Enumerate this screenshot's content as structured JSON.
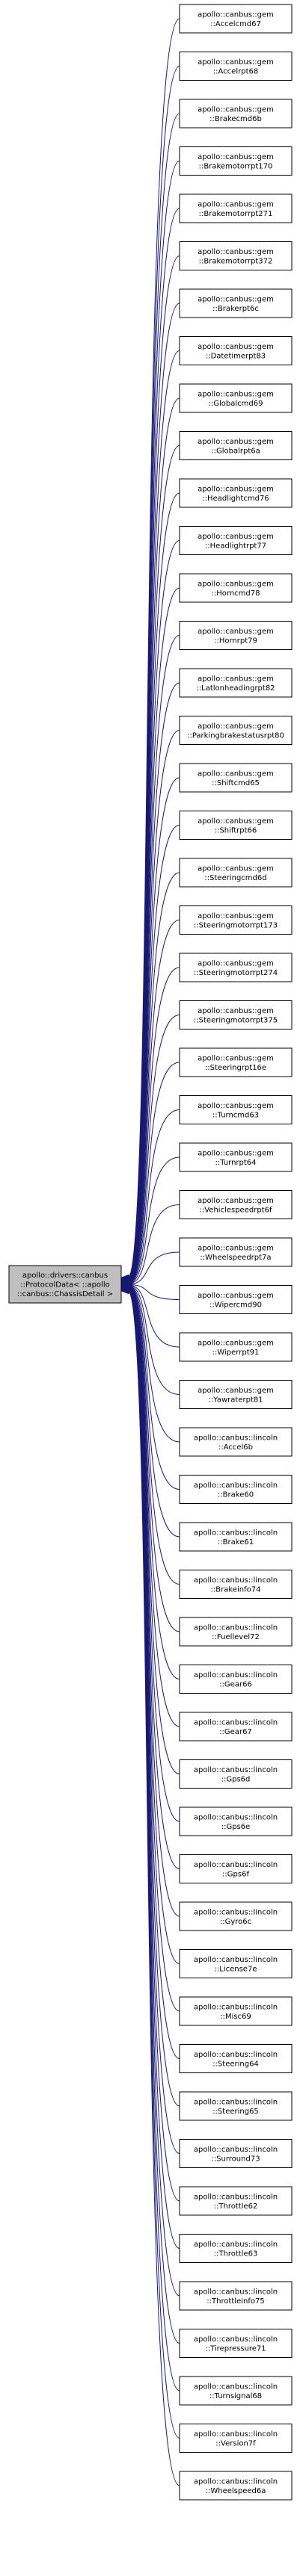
{
  "diagram": {
    "type": "inheritance-graph",
    "base_class": {
      "lines": [
        "apollo::drivers::canbus",
        "::ProtocolData< ::apollo",
        "::canbus::ChassisDetail >"
      ]
    },
    "derived_classes": [
      {
        "lines": [
          "apollo::canbus::gem",
          "::Accelcmd67"
        ]
      },
      {
        "lines": [
          "apollo::canbus::gem",
          "::Accelrpt68"
        ]
      },
      {
        "lines": [
          "apollo::canbus::gem",
          "::Brakecmd6b"
        ]
      },
      {
        "lines": [
          "apollo::canbus::gem",
          "::Brakemotorrpt170"
        ]
      },
      {
        "lines": [
          "apollo::canbus::gem",
          "::Brakemotorrpt271"
        ]
      },
      {
        "lines": [
          "apollo::canbus::gem",
          "::Brakemotorrpt372"
        ]
      },
      {
        "lines": [
          "apollo::canbus::gem",
          "::Brakerpt6c"
        ]
      },
      {
        "lines": [
          "apollo::canbus::gem",
          "::Datetimerpt83"
        ]
      },
      {
        "lines": [
          "apollo::canbus::gem",
          "::Globalcmd69"
        ]
      },
      {
        "lines": [
          "apollo::canbus::gem",
          "::Globalrpt6a"
        ]
      },
      {
        "lines": [
          "apollo::canbus::gem",
          "::Headlightcmd76"
        ]
      },
      {
        "lines": [
          "apollo::canbus::gem",
          "::Headlightrpt77"
        ]
      },
      {
        "lines": [
          "apollo::canbus::gem",
          "::Horncmd78"
        ]
      },
      {
        "lines": [
          "apollo::canbus::gem",
          "::Hornrpt79"
        ]
      },
      {
        "lines": [
          "apollo::canbus::gem",
          "::Latlonheadingrpt82"
        ]
      },
      {
        "lines": [
          "apollo::canbus::gem",
          "::Parkingbrakestatusrpt80"
        ]
      },
      {
        "lines": [
          "apollo::canbus::gem",
          "::Shiftcmd65"
        ]
      },
      {
        "lines": [
          "apollo::canbus::gem",
          "::Shiftrpt66"
        ]
      },
      {
        "lines": [
          "apollo::canbus::gem",
          "::Steeringcmd6d"
        ]
      },
      {
        "lines": [
          "apollo::canbus::gem",
          "::Steeringmotorrpt173"
        ]
      },
      {
        "lines": [
          "apollo::canbus::gem",
          "::Steeringmotorrpt274"
        ]
      },
      {
        "lines": [
          "apollo::canbus::gem",
          "::Steeringmotorrpt375"
        ]
      },
      {
        "lines": [
          "apollo::canbus::gem",
          "::Steeringrpt16e"
        ]
      },
      {
        "lines": [
          "apollo::canbus::gem",
          "::Turncmd63"
        ]
      },
      {
        "lines": [
          "apollo::canbus::gem",
          "::Turnrpt64"
        ]
      },
      {
        "lines": [
          "apollo::canbus::gem",
          "::Vehiclespeedrpt6f"
        ]
      },
      {
        "lines": [
          "apollo::canbus::gem",
          "::Wheelspeedrpt7a"
        ]
      },
      {
        "lines": [
          "apollo::canbus::gem",
          "::Wipercmd90"
        ]
      },
      {
        "lines": [
          "apollo::canbus::gem",
          "::Wiperrpt91"
        ]
      },
      {
        "lines": [
          "apollo::canbus::gem",
          "::Yawraterpt81"
        ]
      },
      {
        "lines": [
          "apollo::canbus::lincoln",
          "::Accel6b"
        ]
      },
      {
        "lines": [
          "apollo::canbus::lincoln",
          "::Brake60"
        ]
      },
      {
        "lines": [
          "apollo::canbus::lincoln",
          "::Brake61"
        ]
      },
      {
        "lines": [
          "apollo::canbus::lincoln",
          "::Brakeinfo74"
        ]
      },
      {
        "lines": [
          "apollo::canbus::lincoln",
          "::Fuellevel72"
        ]
      },
      {
        "lines": [
          "apollo::canbus::lincoln",
          "::Gear66"
        ]
      },
      {
        "lines": [
          "apollo::canbus::lincoln",
          "::Gear67"
        ]
      },
      {
        "lines": [
          "apollo::canbus::lincoln",
          "::Gps6d"
        ]
      },
      {
        "lines": [
          "apollo::canbus::lincoln",
          "::Gps6e"
        ]
      },
      {
        "lines": [
          "apollo::canbus::lincoln",
          "::Gps6f"
        ]
      },
      {
        "lines": [
          "apollo::canbus::lincoln",
          "::Gyro6c"
        ]
      },
      {
        "lines": [
          "apollo::canbus::lincoln",
          "::License7e"
        ]
      },
      {
        "lines": [
          "apollo::canbus::lincoln",
          "::Misc69"
        ]
      },
      {
        "lines": [
          "apollo::canbus::lincoln",
          "::Steering64"
        ]
      },
      {
        "lines": [
          "apollo::canbus::lincoln",
          "::Steering65"
        ]
      },
      {
        "lines": [
          "apollo::canbus::lincoln",
          "::Surround73"
        ]
      },
      {
        "lines": [
          "apollo::canbus::lincoln",
          "::Throttle62"
        ]
      },
      {
        "lines": [
          "apollo::canbus::lincoln",
          "::Throttle63"
        ]
      },
      {
        "lines": [
          "apollo::canbus::lincoln",
          "::Throttleinfo75"
        ]
      },
      {
        "lines": [
          "apollo::canbus::lincoln",
          "::Tirepressure71"
        ]
      },
      {
        "lines": [
          "apollo::canbus::lincoln",
          "::Turnsignal68"
        ]
      },
      {
        "lines": [
          "apollo::canbus::lincoln",
          "::Version7f"
        ]
      },
      {
        "lines": [
          "apollo::canbus::lincoln",
          "::Wheelspeed6a"
        ]
      }
    ]
  }
}
